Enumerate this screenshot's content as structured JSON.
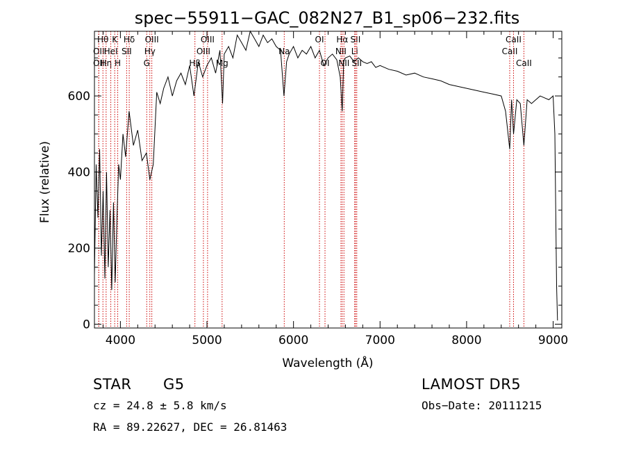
{
  "chart_data": {
    "type": "line",
    "title": "spec−55911−GAC_082N27_B1_sp06−232.fits",
    "xlabel": "Wavelength (Å)",
    "ylabel": "Flux (relative)",
    "xlim": [
      3700,
      9100
    ],
    "ylim": [
      -10,
      770
    ],
    "x_ticks": [
      4000,
      5000,
      6000,
      7000,
      8000,
      9000
    ],
    "y_ticks": [
      0,
      200,
      400,
      600
    ],
    "grid": false,
    "line_color": "#000000",
    "marker_color": "#cc0000",
    "series": [
      {
        "x": [
          3700,
          3720,
          3740,
          3760,
          3780,
          3800,
          3820,
          3840,
          3860,
          3880,
          3900,
          3920,
          3940,
          3960,
          3980,
          4000,
          4030,
          4060,
          4100,
          4150,
          4200,
          4250,
          4300,
          4340,
          4380,
          4420,
          4460,
          4500,
          4550,
          4600,
          4650,
          4700,
          4750,
          4800,
          4850,
          4900,
          4950,
          5000,
          5050,
          5100,
          5150,
          5180,
          5200,
          5250,
          5300,
          5350,
          5400,
          5450,
          5500,
          5550,
          5600,
          5650,
          5700,
          5750,
          5800,
          5850,
          5890,
          5920,
          5950,
          6000,
          6050,
          6100,
          6150,
          6200,
          6250,
          6300,
          6350,
          6400,
          6450,
          6500,
          6540,
          6563,
          6580,
          6600,
          6650,
          6700,
          6750,
          6800,
          6850,
          6900,
          6950,
          7000,
          7100,
          7200,
          7300,
          7400,
          7500,
          7600,
          7700,
          7800,
          7900,
          8000,
          8100,
          8200,
          8300,
          8400,
          8450,
          8498,
          8520,
          8542,
          8580,
          8620,
          8662,
          8700,
          8750,
          8800,
          8850,
          8900,
          8950,
          9000,
          9020,
          9040,
          9050
        ],
        "y": [
          130,
          420,
          280,
          460,
          180,
          350,
          120,
          400,
          150,
          300,
          90,
          320,
          110,
          280,
          420,
          380,
          500,
          440,
          560,
          470,
          510,
          430,
          450,
          380,
          420,
          610,
          580,
          620,
          650,
          600,
          640,
          660,
          630,
          680,
          600,
          690,
          650,
          680,
          700,
          660,
          720,
          580,
          710,
          730,
          700,
          760,
          740,
          720,
          770,
          750,
          730,
          760,
          740,
          750,
          730,
          720,
          600,
          690,
          710,
          730,
          700,
          720,
          710,
          730,
          700,
          720,
          680,
          700,
          710,
          695,
          650,
          560,
          690,
          700,
          705,
          690,
          700,
          690,
          685,
          690,
          675,
          680,
          670,
          665,
          655,
          660,
          650,
          645,
          640,
          630,
          625,
          620,
          615,
          610,
          605,
          600,
          560,
          460,
          590,
          500,
          590,
          580,
          470,
          590,
          580,
          590,
          600,
          595,
          590,
          600,
          500,
          100,
          10
        ]
      }
    ],
    "line_markers": [
      {
        "x": 3750,
        "label": "OII",
        "row": 1
      },
      {
        "x": 3750,
        "label": "OII",
        "row": 2
      },
      {
        "x": 3798,
        "label": "Hθ",
        "row": 0
      },
      {
        "x": 3835,
        "label": "Hη",
        "row": 2
      },
      {
        "x": 3889,
        "label": "HeI",
        "row": 1
      },
      {
        "x": 3934,
        "label": "K",
        "row": 0
      },
      {
        "x": 3969,
        "label": "H",
        "row": 2
      },
      {
        "x": 4072,
        "label": "SII",
        "row": 1
      },
      {
        "x": 4102,
        "label": "Hδ",
        "row": 0
      },
      {
        "x": 4304,
        "label": "G",
        "row": 2
      },
      {
        "x": 4340,
        "label": "Hγ",
        "row": 1
      },
      {
        "x": 4363,
        "label": "OIII",
        "row": 0
      },
      {
        "x": 4861,
        "label": "Hβ",
        "row": 2
      },
      {
        "x": 4959,
        "label": "OIII",
        "row": 1
      },
      {
        "x": 5007,
        "label": "OIII",
        "row": 0
      },
      {
        "x": 5175,
        "label": "Mg",
        "row": 2
      },
      {
        "x": 5893,
        "label": "Na",
        "row": 1
      },
      {
        "x": 6300,
        "label": "OI",
        "row": 0
      },
      {
        "x": 6364,
        "label": "OI",
        "row": 2
      },
      {
        "x": 6548,
        "label": "NII",
        "row": 1
      },
      {
        "x": 6563,
        "label": "Hα",
        "row": 0
      },
      {
        "x": 6583,
        "label": "NII",
        "row": 2
      },
      {
        "x": 6707,
        "label": "Li",
        "row": 1
      },
      {
        "x": 6716,
        "label": "SII",
        "row": 0
      },
      {
        "x": 6731,
        "label": "SII",
        "row": 2
      },
      {
        "x": 8498,
        "label": "CaII",
        "row": 1
      },
      {
        "x": 8542,
        "label": "CaII",
        "row": 0
      },
      {
        "x": 8662,
        "label": "CaII",
        "row": 2
      }
    ]
  },
  "info": {
    "object_class": "STAR",
    "subclass": "G5",
    "redshift": "cz = 24.8 ± 5.8 km/s",
    "coords": "RA =  89.22627, DEC =  26.81463",
    "survey": "LAMOST DR5",
    "obs_date": "Obs−Date: 20111215"
  }
}
